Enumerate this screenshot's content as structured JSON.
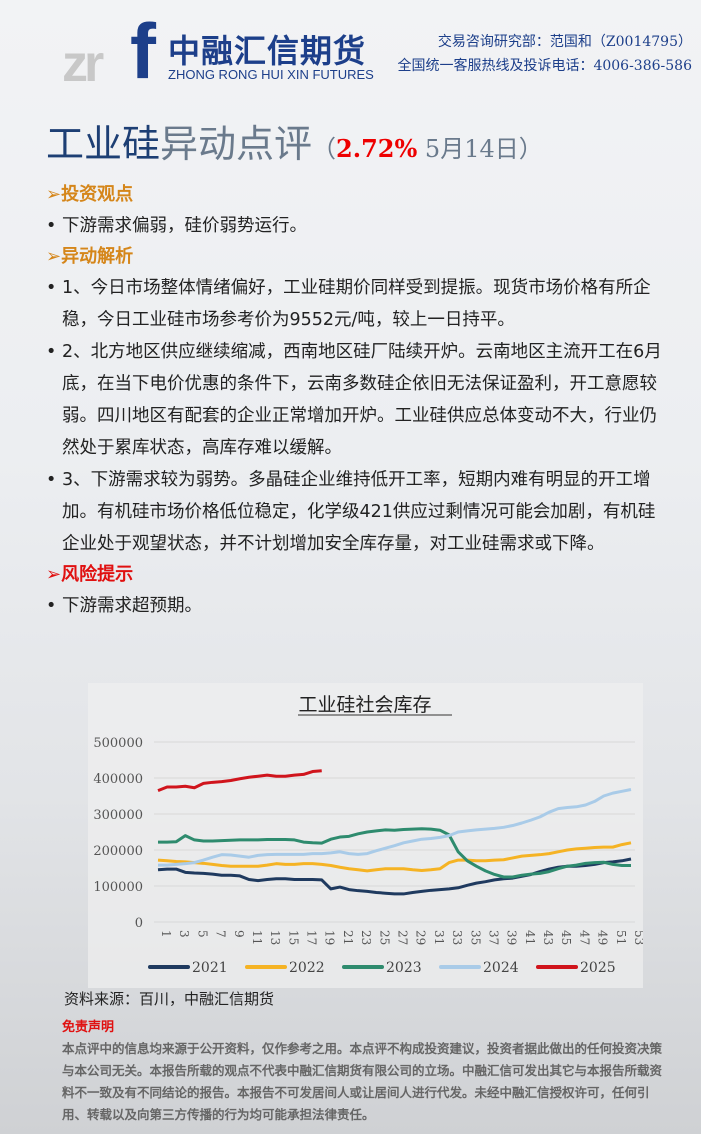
{
  "header": {
    "logo_letters": "zrf",
    "logo_cn": "中融汇信期货",
    "logo_en": "ZHONG RONG HUI XIN FUTURES",
    "contact_line1": "交易咨询研究部：范国和（Z0014795）",
    "contact_line2": "全国统一客服热线及投诉电话：4006-386-586"
  },
  "title": {
    "part1": "工业硅",
    "part2": "异动点评",
    "open": "（",
    "change": "2.72%",
    "date": " 5月14日",
    "close": "）"
  },
  "sections": [
    {
      "heading": "➢投资观点",
      "items": [
        "下游需求偏弱，硅价弱势运行。"
      ]
    },
    {
      "heading": "➢异动解析",
      "items": [
        "1、今日市场整体情绪偏好，工业硅期价同样受到提振。现货市场价格有所企稳，今日工业硅市场参考价为9552元/吨，较上一日持平。",
        "2、北方地区供应继续缩减，西南地区硅厂陆续开炉。云南地区主流开工在6月底，在当下电价优惠的条件下，云南多数硅企依旧无法保证盈利，开工意愿较弱。四川地区有配套的企业正常增加开炉。工业硅供应总体变动不大，行业仍然处于累库状态，高库存难以缓解。",
        "3、下游需求较为弱势。多晶硅企业维持低开工率，短期内难有明显的开工增加。有机硅市场价格低位稳定，化学级421供应过剩情况可能会加剧，有机硅企业处于观望状态，并不计划增加安全库存量，对工业硅需求或下降。"
      ]
    },
    {
      "heading": "➢风险提示",
      "items": [
        "下游需求超预期。"
      ]
    }
  ],
  "chart_data": {
    "type": "line",
    "title": "工业硅社会库存",
    "xlabel": "",
    "ylabel": "",
    "ylim": [
      0,
      500000
    ],
    "yticks": [
      "0",
      "100000",
      "200000",
      "300000",
      "400000",
      "500000"
    ],
    "xticks": [
      "1",
      "3",
      "5",
      "7",
      "9",
      "11",
      "13",
      "15",
      "17",
      "19",
      "21",
      "23",
      "25",
      "27",
      "29",
      "31",
      "33",
      "35",
      "37",
      "39",
      "41",
      "43",
      "45",
      "47",
      "49",
      "51",
      "53"
    ],
    "grid": true,
    "legend": "bottom",
    "series": [
      {
        "name": "2021",
        "color": "#1f3a5f",
        "values": [
          145000,
          147000,
          147000,
          138000,
          136000,
          135000,
          133000,
          130000,
          130000,
          128000,
          118000,
          115000,
          118000,
          120000,
          120000,
          118000,
          118000,
          118000,
          117000,
          92000,
          97000,
          90000,
          87000,
          85000,
          82000,
          80000,
          78000,
          78000,
          82000,
          85000,
          88000,
          90000,
          92000,
          95000,
          102000,
          108000,
          112000,
          117000,
          120000,
          122000,
          127000,
          132000,
          140000,
          147000,
          152000,
          155000,
          155000,
          157000,
          160000,
          165000,
          167000,
          170000,
          175000
        ]
      },
      {
        "name": "2022",
        "color": "#f5b324",
        "values": [
          172000,
          170000,
          168000,
          167000,
          165000,
          163000,
          160000,
          157000,
          155000,
          155000,
          155000,
          155000,
          158000,
          162000,
          160000,
          160000,
          162000,
          162000,
          160000,
          157000,
          152000,
          148000,
          145000,
          142000,
          145000,
          148000,
          148000,
          148000,
          145000,
          143000,
          145000,
          148000,
          165000,
          172000,
          172000,
          170000,
          170000,
          172000,
          173000,
          178000,
          183000,
          185000,
          187000,
          190000,
          195000,
          200000,
          203000,
          205000,
          207000,
          208000,
          208000,
          215000,
          220000
        ]
      },
      {
        "name": "2023",
        "color": "#2e8b6e",
        "values": [
          222000,
          222000,
          223000,
          240000,
          228000,
          225000,
          225000,
          226000,
          227000,
          228000,
          228000,
          228000,
          229000,
          229000,
          229000,
          228000,
          222000,
          220000,
          219000,
          230000,
          236000,
          238000,
          245000,
          250000,
          253000,
          256000,
          255000,
          257000,
          258000,
          259000,
          258000,
          255000,
          242000,
          195000,
          170000,
          155000,
          142000,
          132000,
          125000,
          125000,
          130000,
          133000,
          135000,
          140000,
          148000,
          155000,
          158000,
          163000,
          165000,
          166000,
          160000,
          157000,
          157000
        ]
      },
      {
        "name": "2024",
        "color": "#a9cbe8",
        "values": [
          158000,
          158000,
          160000,
          162000,
          165000,
          172000,
          180000,
          187000,
          186000,
          183000,
          180000,
          185000,
          187000,
          188000,
          188000,
          188000,
          188000,
          190000,
          190000,
          192000,
          195000,
          190000,
          188000,
          190000,
          198000,
          205000,
          212000,
          220000,
          225000,
          230000,
          232000,
          235000,
          240000,
          250000,
          253000,
          256000,
          258000,
          260000,
          263000,
          268000,
          275000,
          283000,
          292000,
          305000,
          315000,
          318000,
          320000,
          325000,
          335000,
          350000,
          358000,
          363000,
          368000
        ]
      },
      {
        "name": "2025",
        "color": "#d0141c",
        "values": [
          365000,
          375000,
          375000,
          377000,
          373000,
          385000,
          388000,
          390000,
          393000,
          398000,
          402000,
          405000,
          408000,
          405000,
          405000,
          408000,
          410000,
          418000,
          420000
        ]
      }
    ]
  },
  "source": "资料来源：百川，中融汇信期货",
  "disclaimer": {
    "heading": "免责声明",
    "text": "本点评中的信息均来源于公开资料，仅作参考之用。本点评不构成投资建议，投资者据此做出的任何投资决策与本公司无关。本报告所载的观点不代表中融汇信期货有限公司的立场。中融汇信可发出其它与本报告所载资料不一致及有不同结论的报告。本报告不可发居间人或让居间人进行代发。未经中融汇信授权许可，任何引用、转载以及向第三方传播的行为均可能承担法律责任。"
  }
}
